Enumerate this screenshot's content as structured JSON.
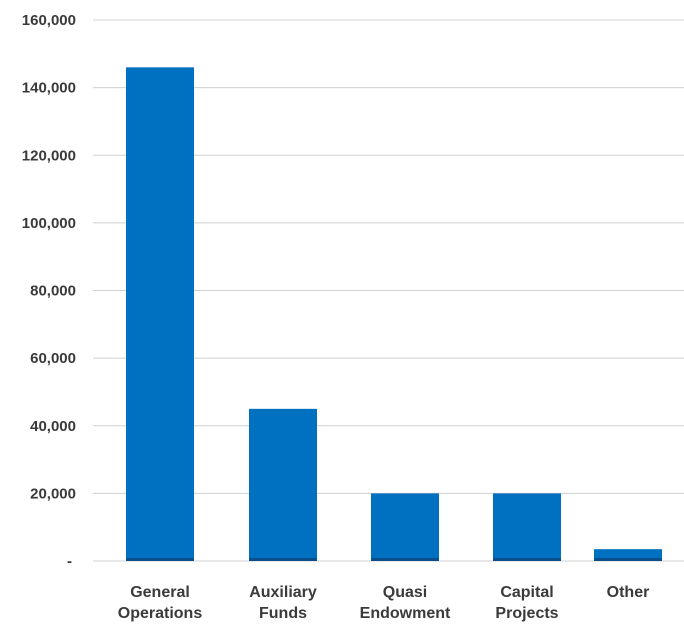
{
  "chart_data": {
    "type": "bar",
    "title": "",
    "xlabel": "",
    "ylabel": "",
    "categories": [
      [
        "General",
        "Operations"
      ],
      [
        "Auxiliary",
        "Funds"
      ],
      [
        "Quasi",
        "Endowment"
      ],
      [
        "Capital",
        "Projects"
      ],
      [
        "Other"
      ]
    ],
    "values": [
      146000,
      45000,
      20000,
      20000,
      3500
    ],
    "ylim": [
      0,
      160000
    ],
    "yticks": [
      {
        "value": 0,
        "label": "-"
      },
      {
        "value": 20000,
        "label": "20,000"
      },
      {
        "value": 40000,
        "label": "40,000"
      },
      {
        "value": 60000,
        "label": "60,000"
      },
      {
        "value": 80000,
        "label": "80,000"
      },
      {
        "value": 100000,
        "label": "100,000"
      },
      {
        "value": 120000,
        "label": "120,000"
      },
      {
        "value": 140000,
        "label": "140,000"
      },
      {
        "value": 160000,
        "label": "160,000"
      }
    ],
    "grid": true,
    "legend": "none",
    "colors": {
      "bar": "#0070c0",
      "bar_base": "#0b4f8a",
      "grid": "#d0d0d0",
      "text": "#3a3a3a"
    }
  }
}
